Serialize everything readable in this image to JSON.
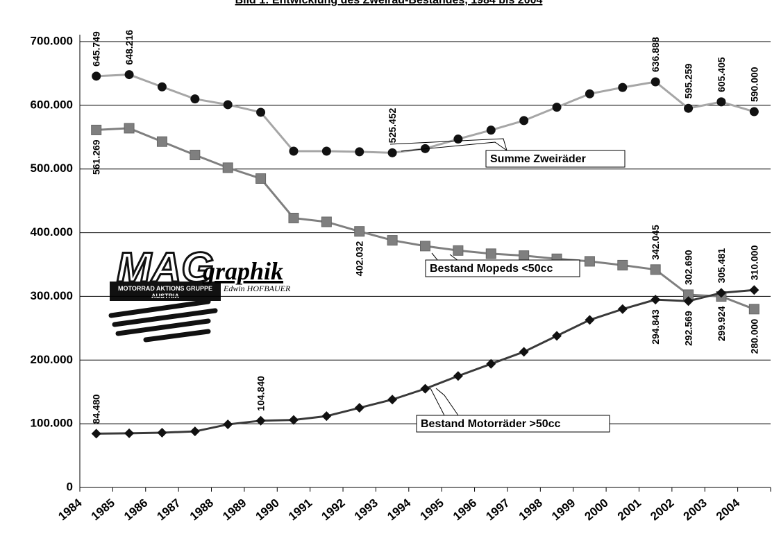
{
  "chart_data": {
    "type": "line",
    "title": "Bild 1: Entwicklung des Zweirad-Bestandes, 1984 bis 2004",
    "categories": [
      "1984",
      "1985",
      "1986",
      "1987",
      "1988",
      "1989",
      "1990",
      "1991",
      "1992",
      "1993",
      "1994",
      "1995",
      "1996",
      "1997",
      "1998",
      "1999",
      "2000",
      "2001",
      "2002",
      "2003",
      "2004"
    ],
    "series": [
      {
        "name": "Summe Zweiräder",
        "color": "#a6a6a6",
        "marker": "circle",
        "values": [
          645749,
          648216,
          629000,
          610000,
          601000,
          589000,
          528000,
          528000,
          527000,
          525452,
          532000,
          547000,
          561000,
          576000,
          597000,
          618000,
          628000,
          636888,
          595259,
          605405,
          590000
        ],
        "value_labels": [
          "645.749",
          "648.216",
          null,
          null,
          null,
          null,
          null,
          null,
          null,
          "525.452",
          null,
          null,
          null,
          null,
          null,
          null,
          null,
          "636.888",
          "595.259",
          "605.405",
          "590.000"
        ]
      },
      {
        "name": "Bestand Mopeds <50cc",
        "color": "#7f7f7f",
        "marker": "square",
        "values": [
          561269,
          564000,
          543000,
          522000,
          502000,
          485000,
          423000,
          417000,
          402032,
          388000,
          379000,
          372000,
          367000,
          364000,
          359000,
          355000,
          349000,
          342045,
          302690,
          299924,
          280000
        ],
        "value_labels": [
          "561.269",
          null,
          null,
          null,
          null,
          null,
          null,
          null,
          "402.032",
          null,
          null,
          null,
          null,
          null,
          null,
          null,
          null,
          "342.045",
          "302.690",
          "299.924",
          "280.000"
        ]
      },
      {
        "name": "Bestand Motorräder >50cc",
        "color": "#3a3a3a",
        "marker": "diamond",
        "values": [
          84480,
          85000,
          86000,
          88000,
          99000,
          104840,
          106000,
          112000,
          125000,
          138000,
          155000,
          175000,
          194000,
          213000,
          238000,
          263000,
          280000,
          294843,
          292569,
          305481,
          310000
        ],
        "value_labels": [
          "84.480",
          null,
          null,
          null,
          null,
          "104.840",
          null,
          null,
          null,
          null,
          null,
          null,
          null,
          null,
          null,
          null,
          null,
          "294.843",
          "292.569",
          "305.481",
          "310.000"
        ]
      }
    ],
    "ylim": [
      0,
      700000
    ],
    "yticks": [
      0,
      {
        "value": 100000,
        "label": "100.000"
      },
      {
        "value": 200000,
        "label": "200.000"
      },
      {
        "value": 300000,
        "label": "300.000"
      },
      {
        "value": 400000,
        "label": "400.000"
      },
      {
        "value": 500000,
        "label": "500.000"
      },
      {
        "value": 600000,
        "label": "600.000"
      },
      {
        "value": 700000,
        "label": "700.000"
      }
    ],
    "grid": true
  },
  "logo": {
    "big": "MAG",
    "word": "graphik",
    "org": "MOTORRAD AKTIONS GRUPPE",
    "country": "AUSTRIA",
    "author": "Edwin HOFBAUER"
  }
}
